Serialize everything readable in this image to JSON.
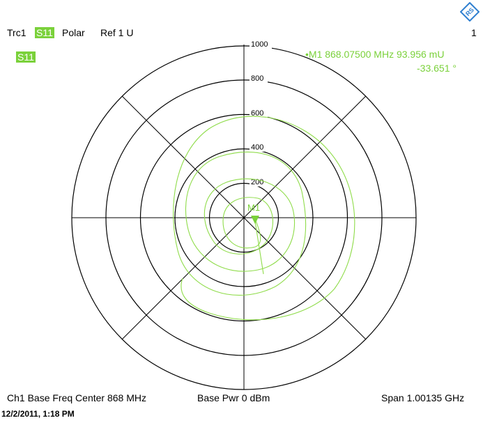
{
  "header": {
    "trace": "Trc1",
    "param": "S11",
    "format": "Polar",
    "ref": "Ref 1 U",
    "window_no": "1",
    "trace_tag": "S11"
  },
  "marker": {
    "line1": "•M1  868.07500 MHz   93.956 mU",
    "line2": "-33.651    °",
    "label": "M1"
  },
  "chart_data": {
    "type": "polar",
    "radial_ticks": [
      "200",
      "400",
      "600",
      "800",
      "1000"
    ],
    "radial_range": [
      0,
      1000
    ],
    "grid": true,
    "trace_color": "#8fdc4a",
    "marker": {
      "name": "M1",
      "frequency_MHz": 868.075,
      "magnitude_mU": 93.956,
      "phase_deg": -33.651
    }
  },
  "footer": {
    "channel": "Ch1  Base Freq  Center  868 MHz",
    "power": "Base Pwr   0 dBm",
    "span": "Span  1.00135 GHz",
    "timestamp": "12/2/2011, 1:18 PM"
  },
  "logo": {
    "name": "rohde-schwarz-logo",
    "color": "#2f7fd0",
    "text": "RS"
  }
}
